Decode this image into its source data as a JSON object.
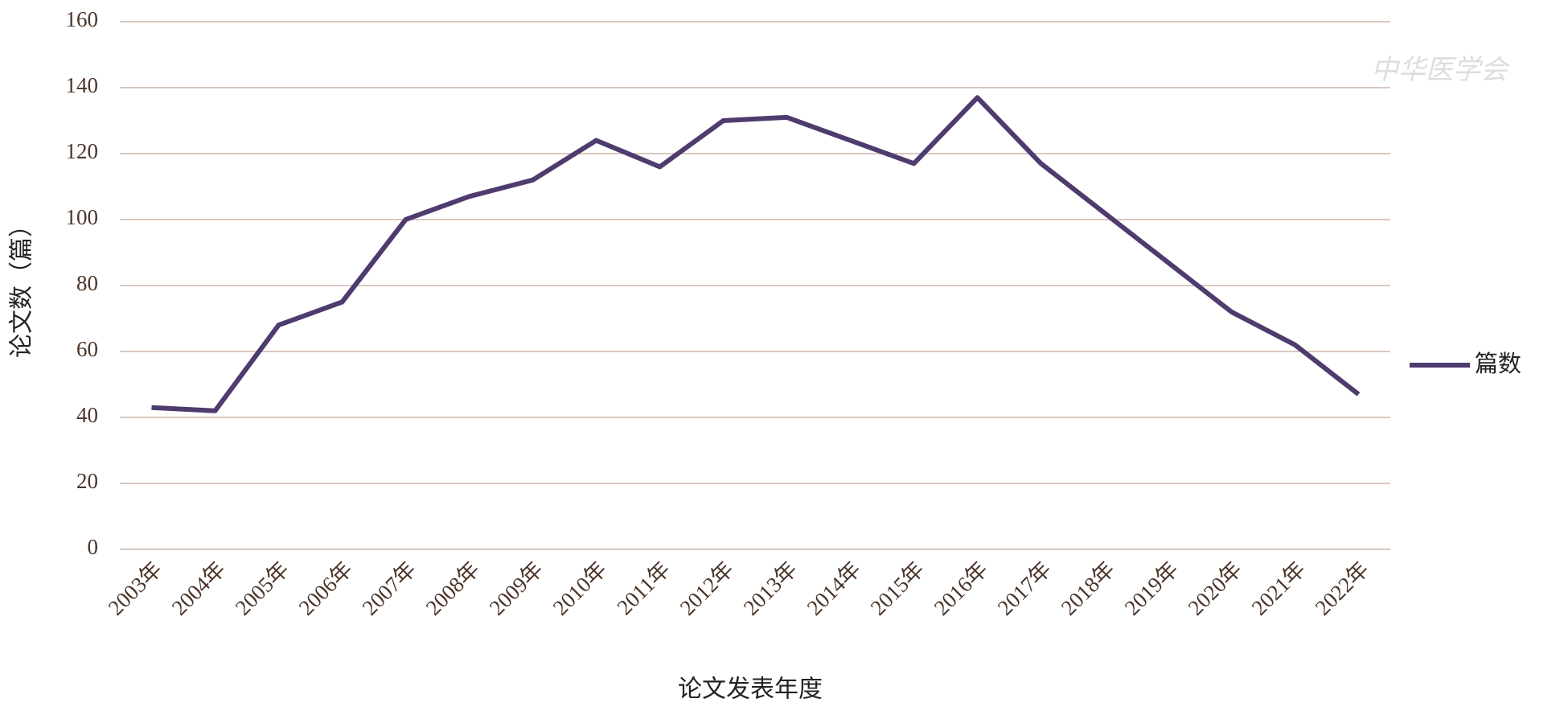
{
  "chart_data": {
    "type": "line",
    "categories": [
      "2003年",
      "2004年",
      "2005年",
      "2006年",
      "2007年",
      "2008年",
      "2009年",
      "2010年",
      "2011年",
      "2012年",
      "2013年",
      "2014年",
      "2015年",
      "2016年",
      "2017年",
      "2018年",
      "2019年",
      "2020年",
      "2021年",
      "2022年"
    ],
    "series": [
      {
        "name": "篇数",
        "color": "#4f3b6e",
        "values": [
          43,
          42,
          68,
          75,
          100,
          107,
          112,
          124,
          116,
          130,
          131,
          124,
          117,
          137,
          117,
          102,
          87,
          72,
          62,
          47
        ]
      }
    ],
    "ylim": [
      0,
      160
    ],
    "yticks": [
      0,
      20,
      40,
      60,
      80,
      100,
      120,
      140,
      160
    ],
    "grid": true,
    "legend": "right",
    "x_label": "论文发表年度",
    "y_label": "论文数（篇）",
    "watermark": "中华医学会"
  }
}
